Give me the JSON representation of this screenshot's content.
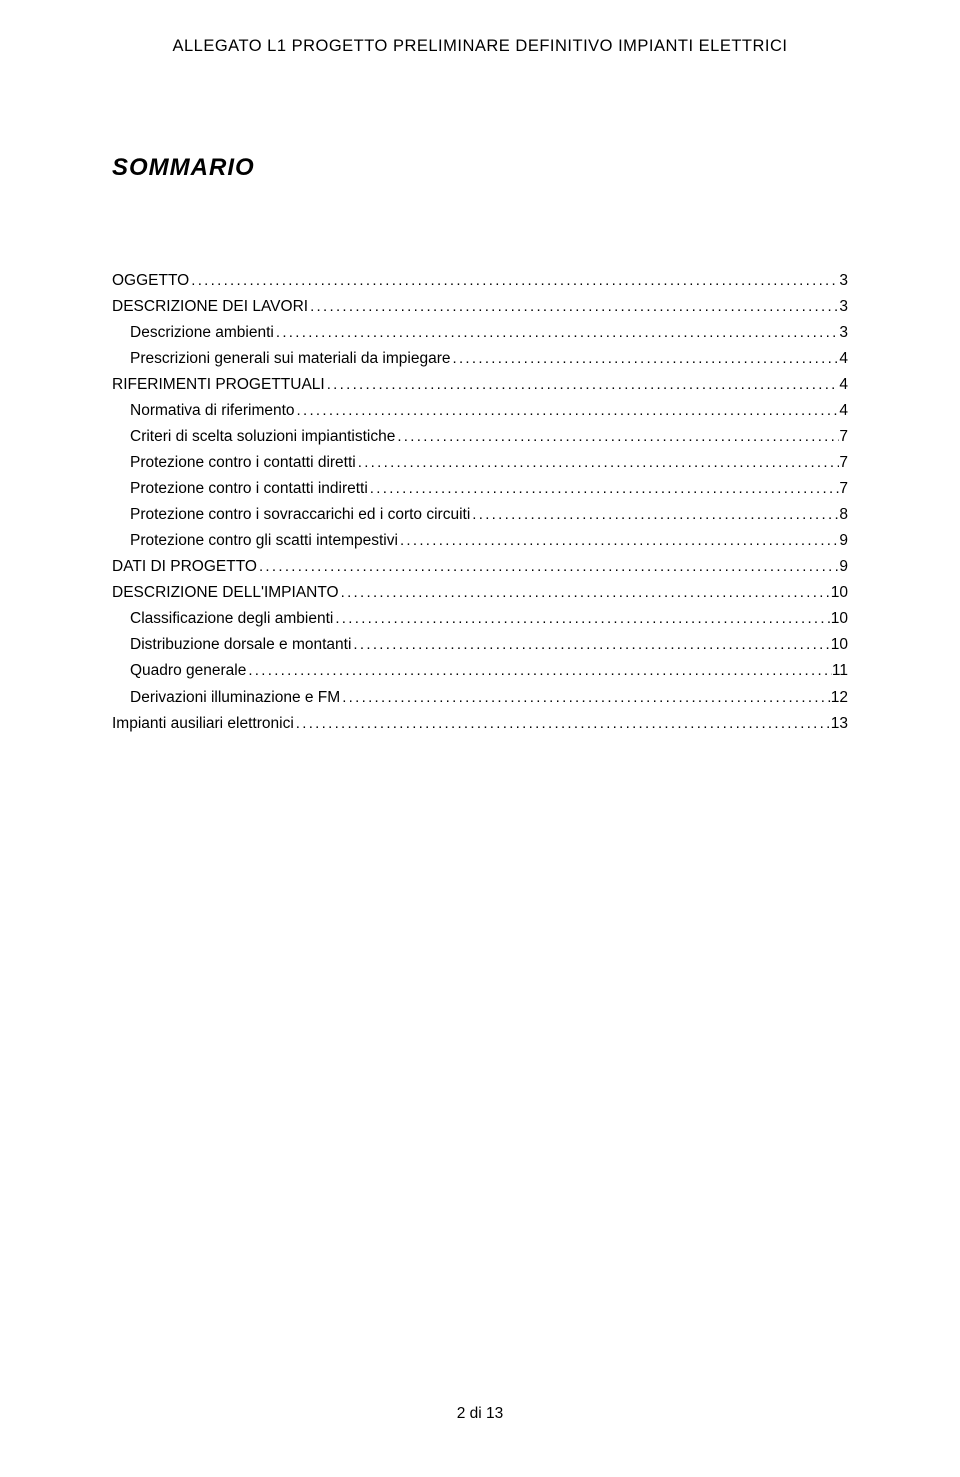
{
  "header_text": "ALLEGATO L1 PROGETTO PRELIMINARE DEFINITIVO IMPIANTI ELETTRICI",
  "sommario_title": "SOMMARIO",
  "toc": [
    {
      "label": "OGGETTO",
      "page": "3",
      "indent": 0
    },
    {
      "label": "DESCRIZIONE DEI LAVORI",
      "page": "3",
      "indent": 0
    },
    {
      "label": "Descrizione ambienti",
      "page": "3",
      "indent": 1
    },
    {
      "label": "Prescrizioni generali sui materiali da impiegare",
      "page": "4",
      "indent": 1
    },
    {
      "label": "RIFERIMENTI PROGETTUALI ",
      "page": "4",
      "indent": 0
    },
    {
      "label": "Normativa di riferimento",
      "page": "4",
      "indent": 1
    },
    {
      "label": "Criteri di scelta soluzioni impiantistiche",
      "page": "7",
      "indent": 1
    },
    {
      "label": "Protezione contro i contatti diretti",
      "page": "7",
      "indent": 1
    },
    {
      "label": "Protezione contro i contatti indiretti",
      "page": "7",
      "indent": 1
    },
    {
      "label": "Protezione contro i sovraccarichi ed i corto circuiti",
      "page": "8",
      "indent": 1
    },
    {
      "label": "Protezione contro gli scatti intempestivi",
      "page": "9",
      "indent": 1
    },
    {
      "label": "DATI DI PROGETTO",
      "page": "9",
      "indent": 0
    },
    {
      "label": "DESCRIZIONE DELL'IMPIANTO",
      "page": "10",
      "indent": 0
    },
    {
      "label": "Classificazione degli ambienti",
      "page": "10",
      "indent": 1
    },
    {
      "label": "Distribuzione dorsale e montanti",
      "page": "10",
      "indent": 1
    },
    {
      "label": "Quadro generale",
      "page": "11",
      "indent": 1
    },
    {
      "label": "Derivazioni illuminazione e FM",
      "page": "12",
      "indent": 1
    },
    {
      "label": "Impianti ausiliari elettronici",
      "page": "13",
      "indent": 0
    }
  ],
  "footer_text": "2 di 13"
}
